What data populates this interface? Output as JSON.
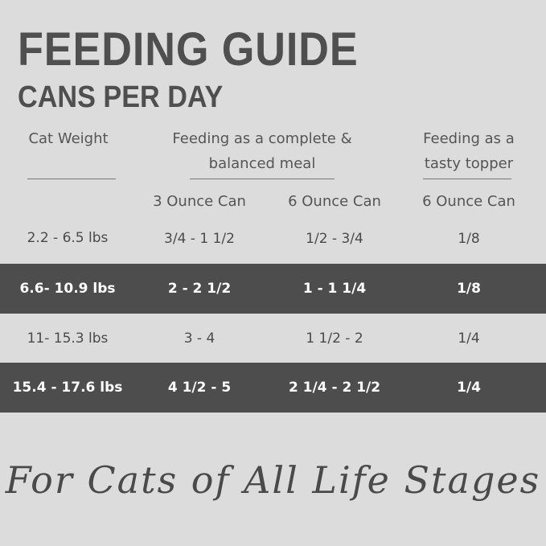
{
  "header": {
    "title": "FEEDING GUIDE",
    "subtitle": "CANS PER DAY"
  },
  "table": {
    "column_headers": [
      "Cat Weight",
      "Feeding as a complete & balanced meal",
      "Feeding as a tasty topper"
    ],
    "sub_headers": [
      "3 Ounce Can",
      "6 Ounce Can",
      "6 Ounce Can"
    ],
    "rows": [
      [
        "2.2 - 6.5 lbs",
        "3/4 - 1 1/2",
        "1/2 - 3/4",
        "1/8"
      ],
      [
        "6.6- 10.9 lbs",
        "2 - 2 1/2",
        "1 - 1 1/4",
        "1/8"
      ],
      [
        "11- 15.3 lbs",
        "3 - 4",
        "1 1/2 - 2",
        "1/4"
      ],
      [
        "15.4 - 17.6 lbs",
        "4 1/2 - 5",
        "2 1/4 - 2 1/2",
        "1/4"
      ]
    ]
  },
  "footer": "For Cats of All Life Stages"
}
